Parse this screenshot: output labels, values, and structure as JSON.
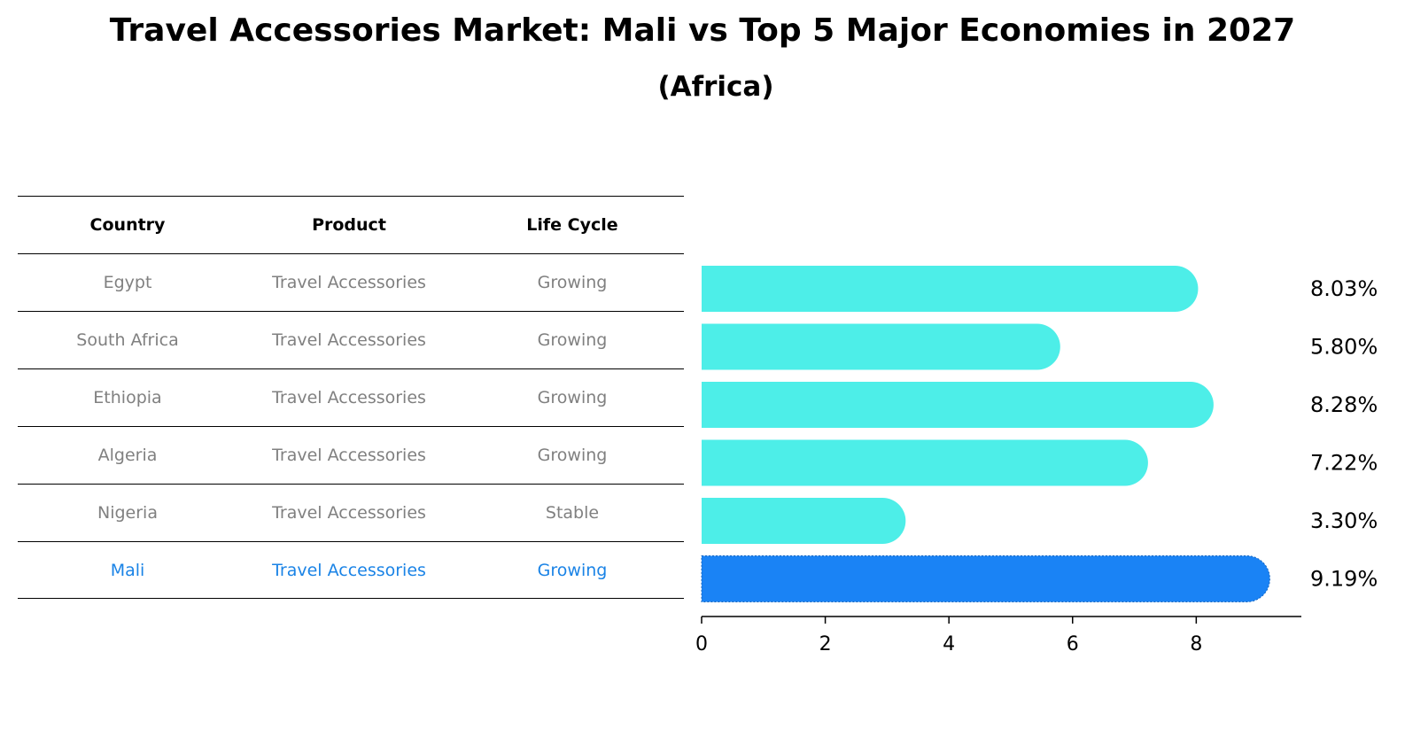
{
  "chart_data": {
    "type": "bar",
    "orientation": "horizontal",
    "title": "Travel Accessories Market: Mali vs Top 5 Major Economies in 2027",
    "subtitle": "(Africa)",
    "categories": [
      "Egypt",
      "South Africa",
      "Ethiopia",
      "Algeria",
      "Nigeria",
      "Mali"
    ],
    "values": [
      8.03,
      5.8,
      8.28,
      7.22,
      3.3,
      9.19
    ],
    "value_labels": [
      "8.03%",
      "5.80%",
      "8.28%",
      "7.22%",
      "3.30%",
      "9.19%"
    ],
    "highlight": "Mali",
    "colors": {
      "default": "#4deee8",
      "highlight": "#1a83f5",
      "highlight_text": "#1a83e6"
    },
    "xlim": [
      0,
      9.7
    ],
    "xticks": [
      0,
      2,
      4,
      6,
      8
    ],
    "table": {
      "headers": [
        "Country",
        "Product",
        "Life Cycle"
      ],
      "rows": [
        [
          "Egypt",
          "Travel Accessories",
          "Growing"
        ],
        [
          "South Africa",
          "Travel Accessories",
          "Growing"
        ],
        [
          "Ethiopia",
          "Travel Accessories",
          "Growing"
        ],
        [
          "Algeria",
          "Travel Accessories",
          "Growing"
        ],
        [
          "Nigeria",
          "Travel Accessories",
          "Stable"
        ],
        [
          "Mali",
          "Travel Accessories",
          "Growing"
        ]
      ]
    }
  }
}
